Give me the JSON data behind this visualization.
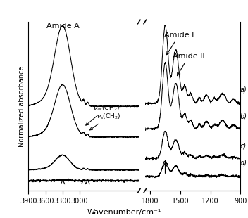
{
  "xlabel": "Wavenumber/cm⁻¹",
  "ylabel": "Normalized absorbance",
  "background_color": "#ffffff",
  "series_labels": [
    "a)",
    "b)",
    "c)",
    "d)"
  ],
  "left_xticks": [
    3900,
    3600,
    3300,
    3000
  ],
  "right_xticks": [
    1800,
    1500,
    1200,
    900
  ],
  "left_xlim": [
    3900,
    1950
  ],
  "right_xlim": [
    1850,
    900
  ],
  "ylabel_fontsize": 7,
  "xlabel_fontsize": 8,
  "tick_fontsize": 7,
  "label_fontsize": 8,
  "annot_fontsize": 6.5
}
